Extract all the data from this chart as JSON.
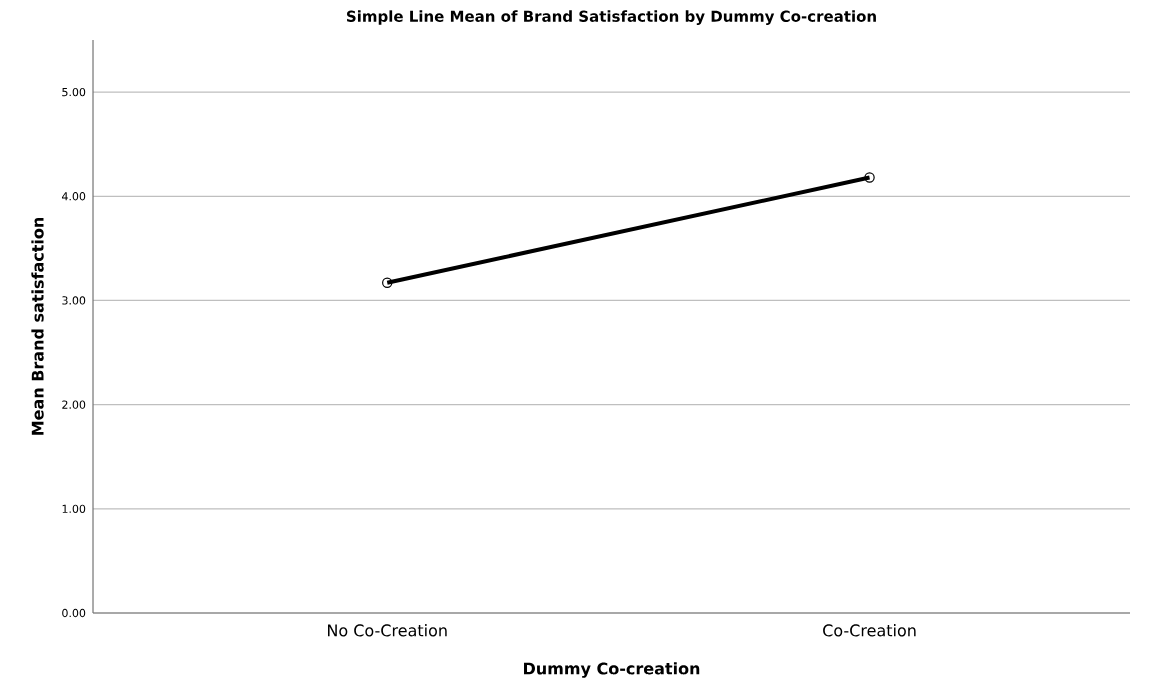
{
  "chart_data": {
    "type": "line",
    "title": "Simple Line Mean of Brand Satisfaction by Dummy Co-creation",
    "xlabel": "Dummy Co-creation",
    "ylabel": "Mean Brand satisfaction",
    "categories": [
      "No Co-Creation",
      "Co-Creation"
    ],
    "values": [
      3.17,
      4.18
    ],
    "color": "#000000",
    "ylim": [
      0,
      5.5
    ],
    "yticks": [
      {
        "value": 0,
        "label": "0.00"
      },
      {
        "value": 1,
        "label": "1.00"
      },
      {
        "value": 2,
        "label": "2.00"
      },
      {
        "value": 3,
        "label": "3.00"
      },
      {
        "value": 4,
        "label": "4.00"
      },
      {
        "value": 5,
        "label": "5.00"
      }
    ],
    "grid": "y",
    "marker": "circle",
    "line_style": "solid"
  }
}
